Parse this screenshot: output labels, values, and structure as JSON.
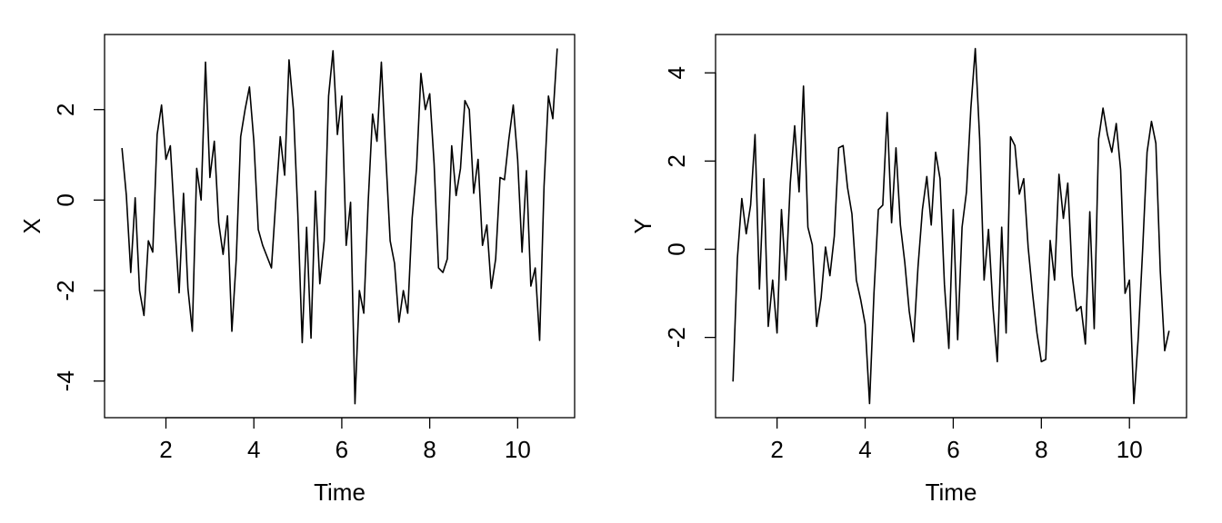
{
  "chart_data": [
    {
      "type": "line",
      "xlabel": "Time",
      "ylabel": "X",
      "x": [
        1,
        1.1,
        1.2,
        1.3,
        1.4,
        1.5,
        1.6,
        1.7,
        1.8,
        1.9,
        2,
        2.1,
        2.2,
        2.3,
        2.4,
        2.5,
        2.6,
        2.7,
        2.8,
        2.9,
        3,
        3.1,
        3.2,
        3.3,
        3.4,
        3.5,
        3.6,
        3.7,
        3.8,
        3.9,
        4,
        4.1,
        4.2,
        4.3,
        4.4,
        4.5,
        4.6,
        4.7,
        4.8,
        4.9,
        5,
        5.1,
        5.2,
        5.3,
        5.4,
        5.5,
        5.6,
        5.7,
        5.8,
        5.9,
        6,
        6.1,
        6.2,
        6.3,
        6.4,
        6.5,
        6.6,
        6.7,
        6.8,
        6.9,
        7,
        7.1,
        7.2,
        7.3,
        7.4,
        7.5,
        7.6,
        7.7,
        7.8,
        7.9,
        8,
        8.1,
        8.2,
        8.3,
        8.4,
        8.5,
        8.6,
        8.7,
        8.8,
        8.9,
        9,
        9.1,
        9.2,
        9.3,
        9.4,
        9.5,
        9.6,
        9.7,
        9.8,
        9.9,
        10,
        10.1,
        10.2,
        10.3,
        10.4,
        10.5,
        10.6,
        10.7,
        10.8,
        10.9
      ],
      "values": [
        1.15,
        0.1,
        -1.6,
        0.05,
        -2.0,
        -2.55,
        -0.9,
        -1.15,
        1.45,
        2.1,
        0.9,
        1.2,
        -0.5,
        -2.05,
        0.15,
        -1.95,
        -2.9,
        0.7,
        0.0,
        3.05,
        0.5,
        1.3,
        -0.5,
        -1.2,
        -0.35,
        -2.9,
        -1.3,
        1.4,
        2.0,
        2.5,
        1.3,
        -0.65,
        -1.0,
        -1.25,
        -1.5,
        0.0,
        1.4,
        0.55,
        3.1,
        2.0,
        -0.3,
        -3.15,
        -0.6,
        -3.05,
        0.2,
        -1.85,
        -0.9,
        2.3,
        3.3,
        1.45,
        2.3,
        -1.0,
        -0.05,
        -4.5,
        -2.0,
        -2.5,
        -0.05,
        1.9,
        1.3,
        3.05,
        1.0,
        -0.9,
        -1.4,
        -2.7,
        -2.0,
        -2.5,
        -0.4,
        0.7,
        2.8,
        2.0,
        2.35,
        0.8,
        -1.5,
        -1.6,
        -1.3,
        1.2,
        0.1,
        0.7,
        2.2,
        2.0,
        0.15,
        0.9,
        -1.0,
        -0.55,
        -1.95,
        -1.3,
        0.5,
        0.45,
        1.35,
        2.1,
        0.9,
        -1.15,
        0.65,
        -1.9,
        -1.5,
        -3.1,
        0.3,
        2.3,
        1.8,
        3.35
      ],
      "color": "#000000",
      "xlim": [
        0.604,
        11.296
      ],
      "xticks": [
        2,
        4,
        6,
        8,
        10
      ],
      "ylim": [
        -4.81,
        3.66
      ],
      "yticks": [
        -4,
        -2,
        0,
        2
      ]
    },
    {
      "type": "line",
      "xlabel": "Time",
      "ylabel": "Y",
      "x": [
        1,
        1.1,
        1.2,
        1.3,
        1.4,
        1.5,
        1.6,
        1.7,
        1.8,
        1.9,
        2,
        2.1,
        2.2,
        2.3,
        2.4,
        2.5,
        2.6,
        2.7,
        2.8,
        2.9,
        3,
        3.1,
        3.2,
        3.3,
        3.4,
        3.5,
        3.6,
        3.7,
        3.8,
        3.9,
        4,
        4.1,
        4.2,
        4.3,
        4.4,
        4.5,
        4.6,
        4.7,
        4.8,
        4.9,
        5,
        5.1,
        5.2,
        5.3,
        5.4,
        5.5,
        5.6,
        5.7,
        5.8,
        5.9,
        6,
        6.1,
        6.2,
        6.3,
        6.4,
        6.5,
        6.6,
        6.7,
        6.8,
        6.9,
        7,
        7.1,
        7.2,
        7.3,
        7.4,
        7.5,
        7.6,
        7.7,
        7.8,
        7.9,
        8,
        8.1,
        8.2,
        8.3,
        8.4,
        8.5,
        8.6,
        8.7,
        8.8,
        8.9,
        9,
        9.1,
        9.2,
        9.3,
        9.4,
        9.5,
        9.6,
        9.7,
        9.8,
        9.9,
        10,
        10.1,
        10.2,
        10.3,
        10.4,
        10.5,
        10.6,
        10.7,
        10.8,
        10.9
      ],
      "values": [
        -3.0,
        -0.2,
        1.15,
        0.35,
        1.0,
        2.6,
        -0.9,
        1.6,
        -1.75,
        -0.7,
        -1.9,
        0.9,
        -0.7,
        1.5,
        2.8,
        1.3,
        3.7,
        0.5,
        0.1,
        -1.75,
        -1.1,
        0.05,
        -0.6,
        0.3,
        2.3,
        2.35,
        1.4,
        0.8,
        -0.7,
        -1.15,
        -1.7,
        -3.5,
        -1.0,
        0.9,
        1.0,
        3.1,
        0.6,
        2.3,
        0.55,
        -0.3,
        -1.4,
        -2.1,
        -0.4,
        0.9,
        1.65,
        0.55,
        2.2,
        1.6,
        -0.8,
        -2.25,
        0.9,
        -2.05,
        0.5,
        1.3,
        3.2,
        4.55,
        2.5,
        -0.7,
        0.45,
        -1.3,
        -2.55,
        0.5,
        -1.9,
        2.55,
        2.35,
        1.25,
        1.6,
        0.05,
        -1.0,
        -1.9,
        -2.55,
        -2.5,
        0.2,
        -0.7,
        1.7,
        0.7,
        1.5,
        -0.6,
        -1.4,
        -1.3,
        -2.15,
        0.85,
        -1.8,
        2.5,
        3.2,
        2.6,
        2.2,
        2.85,
        1.8,
        -1.0,
        -0.7,
        -3.5,
        -2.0,
        0.0,
        2.2,
        2.9,
        2.4,
        -0.5,
        -2.3,
        -1.85
      ],
      "color": "#000000",
      "xlim": [
        0.604,
        11.296
      ],
      "xticks": [
        2,
        4,
        6,
        8,
        10
      ],
      "ylim": [
        -3.82,
        4.87
      ],
      "yticks": [
        -2,
        0,
        2,
        4
      ]
    }
  ]
}
